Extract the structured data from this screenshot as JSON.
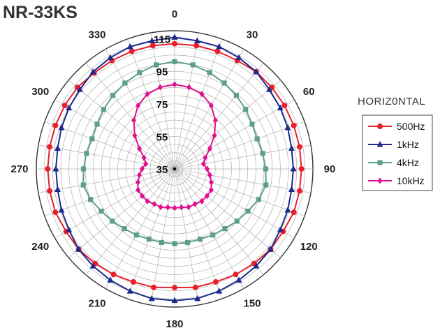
{
  "chart_data": {
    "type": "polar-line",
    "title": "NR-33KS",
    "angle_ticks": [
      0,
      30,
      60,
      90,
      120,
      150,
      180,
      210,
      240,
      270,
      300,
      330
    ],
    "angle_tick_labels": [
      "0",
      "30",
      "60",
      "90",
      "120",
      "150",
      "180",
      "210",
      "240",
      "270",
      "300",
      "330"
    ],
    "radial_ticks": [
      35,
      55,
      75,
      95,
      115
    ],
    "radial_tick_labels": [
      "35",
      "55",
      "75",
      "95",
      "115"
    ],
    "rlim": [
      35,
      120
    ],
    "grid": true,
    "angle_step": 10,
    "legend": {
      "title": "HORIZ0NTAL",
      "position": "right"
    },
    "angles": [
      0,
      10,
      20,
      30,
      40,
      50,
      60,
      70,
      80,
      90,
      100,
      110,
      120,
      130,
      140,
      150,
      160,
      170,
      180,
      190,
      200,
      210,
      220,
      230,
      240,
      250,
      260,
      270,
      280,
      290,
      300,
      310,
      320,
      330,
      340,
      350
    ],
    "series": [
      {
        "name": "500Hz",
        "color": "#e8202a",
        "marker": "circle",
        "values": [
          112,
          112,
          112,
          112,
          113,
          113,
          113,
          113,
          113,
          113,
          113,
          113,
          112,
          112,
          111,
          110,
          109,
          109,
          108,
          109,
          109,
          110,
          111,
          112,
          112,
          113,
          113,
          113,
          113,
          113,
          113,
          113,
          112,
          112,
          112,
          112
        ]
      },
      {
        "name": "1kHz",
        "color": "#1c2a8c",
        "marker": "triangle",
        "values": [
          116,
          115,
          115,
          114,
          113,
          111,
          110,
          109,
          108,
          108,
          108,
          109,
          110,
          112,
          113,
          114,
          115,
          116,
          116,
          116,
          115,
          114,
          113,
          112,
          110,
          109,
          108,
          108,
          108,
          109,
          110,
          111,
          113,
          114,
          115,
          115
        ]
      },
      {
        "name": "4kHz",
        "color": "#5e9e8e",
        "marker": "square",
        "values": [
          101,
          100,
          98,
          96,
          94,
          92,
          90,
          89,
          90,
          91,
          92,
          90,
          87,
          85,
          83,
          82,
          81,
          81,
          81,
          81,
          81,
          82,
          83,
          85,
          87,
          90,
          92,
          91,
          90,
          89,
          90,
          92,
          94,
          96,
          98,
          100
        ]
      },
      {
        "name": "10kHz",
        "color": "#e0108c",
        "marker": "diamond",
        "values": [
          87,
          86,
          84,
          80,
          74,
          67,
          60,
          55,
          53,
          55,
          57,
          59,
          61,
          61,
          61,
          60,
          60,
          59,
          59,
          59,
          60,
          60,
          61,
          61,
          61,
          59,
          57,
          55,
          53,
          55,
          60,
          67,
          74,
          80,
          84,
          86
        ]
      }
    ]
  }
}
